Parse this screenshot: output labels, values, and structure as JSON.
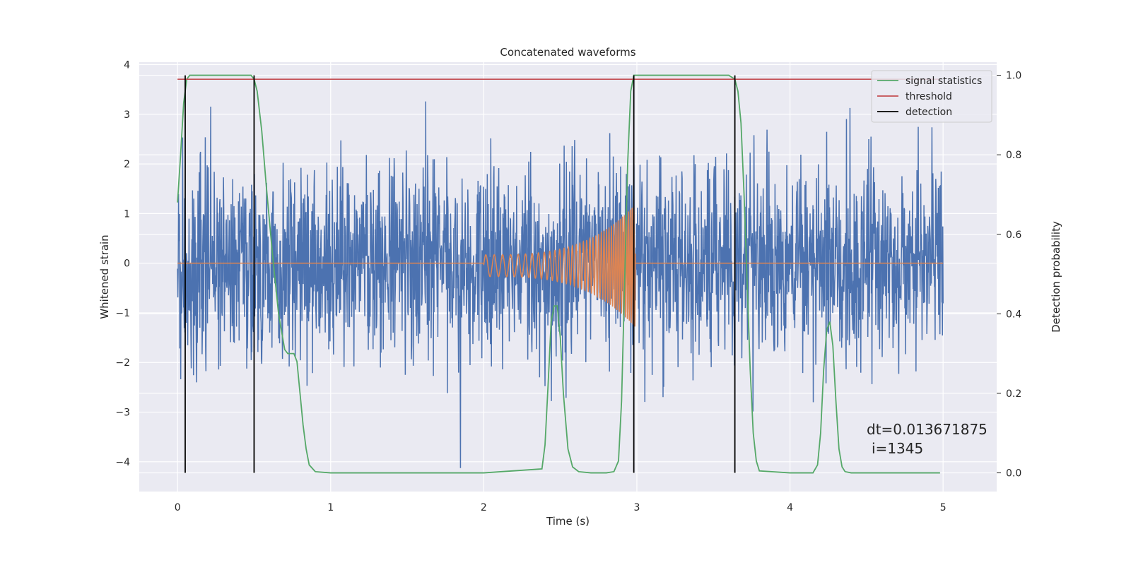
{
  "chart_data": {
    "type": "line",
    "title": "Concatenated waveforms",
    "xlabel": "Time (s)",
    "ylabel": "Whitened strain",
    "ylabel_right": "Detection probability",
    "xlim": [
      -0.25,
      5.35
    ],
    "ylim": [
      -4.6,
      4.05
    ],
    "ylim_right": [
      -0.047,
      1.033
    ],
    "x_ticks": [
      "0",
      "1",
      "2",
      "3",
      "4",
      "5"
    ],
    "y_ticks": [
      "4",
      "3",
      "2",
      "1",
      "0",
      "−1",
      "−2",
      "−3",
      "−4"
    ],
    "y_right_ticks": [
      "1.0",
      "0.8",
      "0.6",
      "0.4",
      "0.2",
      "0.0"
    ],
    "grid": true,
    "legend_position": "top-right",
    "legend": [
      "signal statistics",
      "threshold",
      "detection"
    ],
    "colors": {
      "strain": "#4c72b0",
      "injected": "#dd8452",
      "signal_statistics": "#55a868",
      "threshold": "#c44e52",
      "detection": "#000000",
      "axes_bg": "#eaeaf2",
      "grid": "#ffffff"
    },
    "series": [
      {
        "name": "signal statistics",
        "axis": "right",
        "x": [
          0.0,
          0.02,
          0.04,
          0.06,
          0.08,
          0.1,
          0.2,
          0.3,
          0.4,
          0.48,
          0.5,
          0.52,
          0.55,
          0.58,
          0.62,
          0.66,
          0.7,
          0.72,
          0.74,
          0.76,
          0.78,
          0.8,
          0.82,
          0.84,
          0.86,
          0.9,
          1.0,
          2.0,
          2.38,
          2.4,
          2.42,
          2.44,
          2.46,
          2.48,
          2.5,
          2.52,
          2.55,
          2.58,
          2.62,
          2.7,
          2.8,
          2.85,
          2.88,
          2.9,
          2.92,
          2.94,
          2.96,
          2.98,
          3.0,
          3.05,
          3.2,
          3.5,
          3.6,
          3.64,
          3.66,
          3.68,
          3.7,
          3.72,
          3.74,
          3.76,
          3.78,
          3.8,
          4.0,
          4.15,
          4.18,
          4.2,
          4.22,
          4.24,
          4.26,
          4.28,
          4.3,
          4.32,
          4.34,
          4.36,
          4.4,
          4.5,
          4.98
        ],
        "y": [
          0.68,
          0.8,
          0.93,
          0.99,
          1.0,
          1.0,
          1.0,
          1.0,
          1.0,
          1.0,
          0.99,
          0.96,
          0.86,
          0.72,
          0.55,
          0.4,
          0.31,
          0.3,
          0.3,
          0.3,
          0.28,
          0.2,
          0.12,
          0.06,
          0.02,
          0.003,
          0.0,
          0.0,
          0.01,
          0.07,
          0.22,
          0.38,
          0.42,
          0.42,
          0.34,
          0.2,
          0.06,
          0.015,
          0.003,
          0.0,
          0.0,
          0.003,
          0.03,
          0.18,
          0.48,
          0.78,
          0.96,
          1.0,
          1.0,
          1.0,
          1.0,
          1.0,
          1.0,
          0.99,
          0.96,
          0.88,
          0.7,
          0.48,
          0.26,
          0.1,
          0.03,
          0.005,
          0.0,
          0.0,
          0.02,
          0.1,
          0.26,
          0.36,
          0.38,
          0.32,
          0.18,
          0.06,
          0.015,
          0.003,
          0.0,
          0.0,
          0.0
        ]
      },
      {
        "name": "threshold",
        "axis": "right",
        "x": [
          0.0,
          4.98
        ],
        "y": [
          0.99,
          0.99
        ]
      },
      {
        "name": "detection",
        "axis": "right",
        "vlines": [
          0.05,
          0.5,
          2.98,
          3.64
        ],
        "ymin": 0.0,
        "ymax": 1.0
      }
    ],
    "annotations": [
      "dt=0.013671875",
      "i=1345"
    ]
  }
}
